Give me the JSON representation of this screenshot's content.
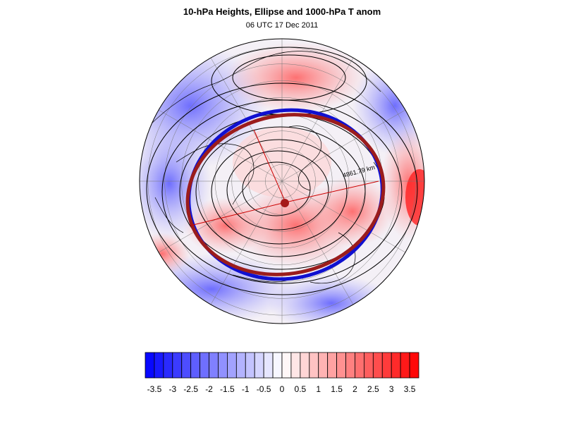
{
  "figure": {
    "title": "10-hPa Heights, Ellipse and 1000-hPa T anom",
    "subtitle": "06 UTC 17 Dec 2011",
    "distance_label": "4861.79 km"
  },
  "colors": {
    "ellipse": "#9b1c1c",
    "ellipse_prev": "#1010d0",
    "contour": "#000000",
    "background": "#ffffff"
  },
  "colorbar": {
    "min": -3.75,
    "max": 3.75,
    "step": 0.25,
    "tick_labels": [
      "-3.5",
      "-3",
      "-2.5",
      "-2",
      "-1.5",
      "-1",
      "-0.5",
      "0",
      "0.5",
      "1",
      "1.5",
      "2",
      "2.5",
      "3",
      "3.5"
    ],
    "tick_values": [
      -3.5,
      -3,
      -2.5,
      -2,
      -1.5,
      -1,
      -0.5,
      0,
      0.5,
      1,
      1.5,
      2,
      2.5,
      3,
      3.5
    ]
  }
}
